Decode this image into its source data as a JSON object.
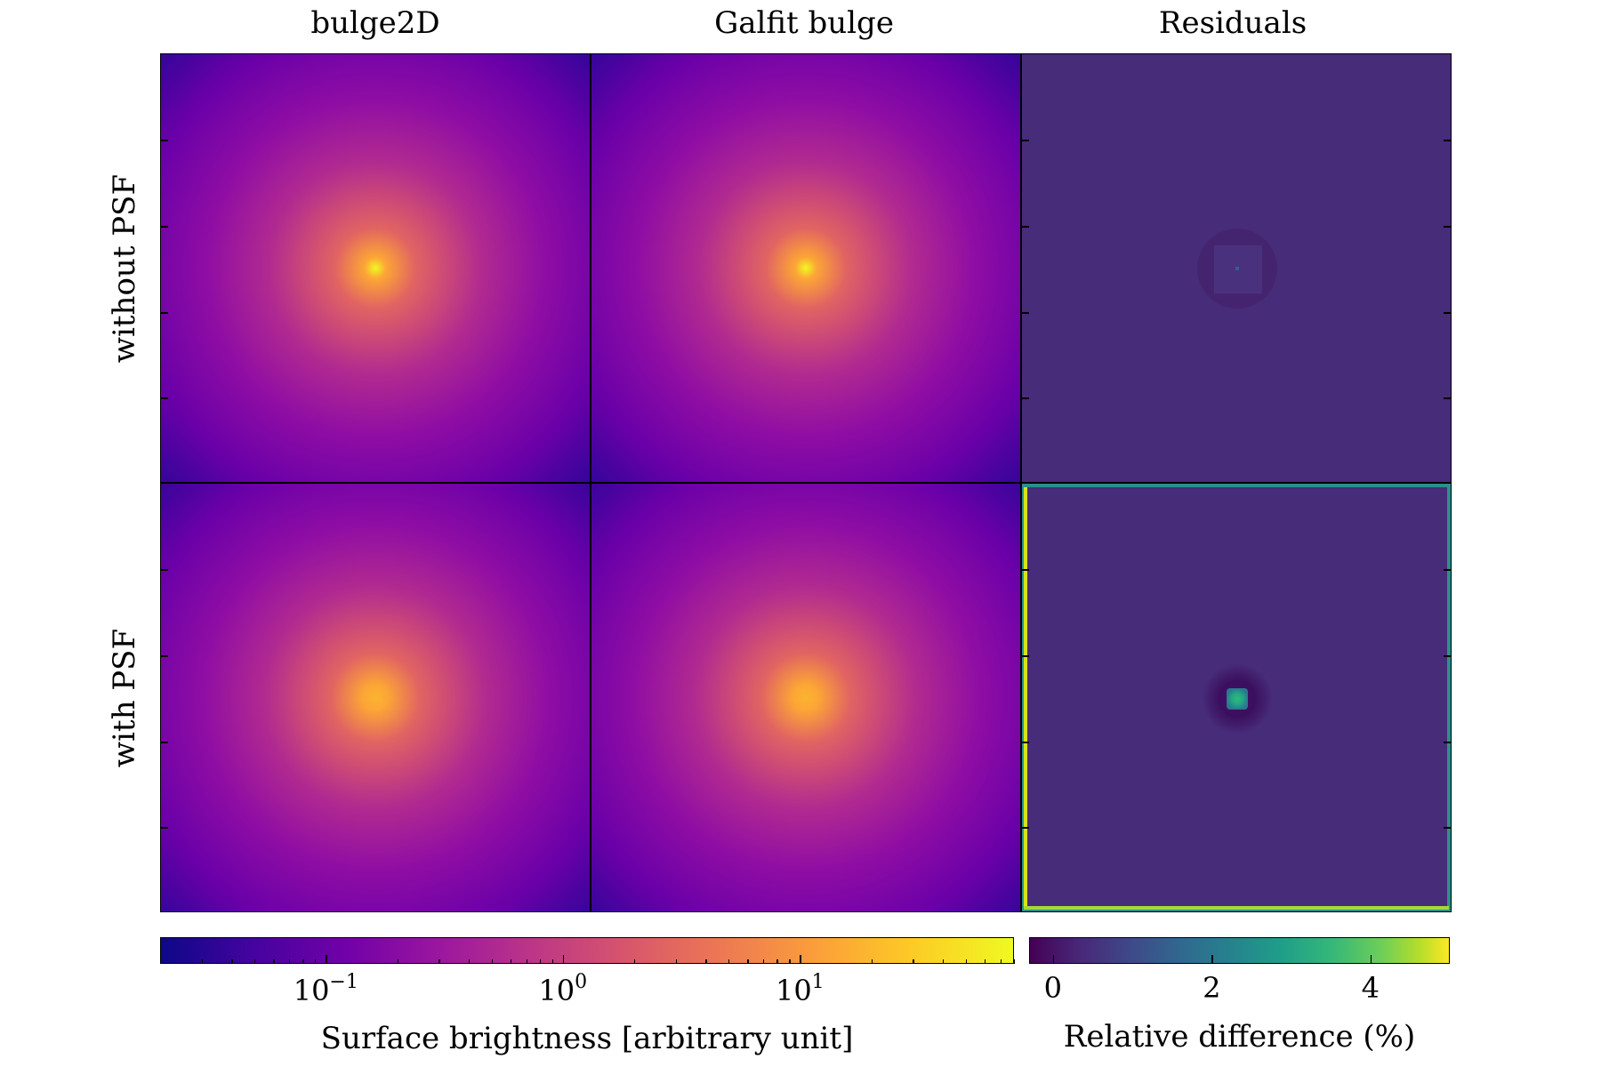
{
  "column_titles": [
    "bulge2D",
    "Galfit bulge",
    "Residuals"
  ],
  "row_labels": [
    "without PSF",
    "with PSF"
  ],
  "colorbar_left": {
    "label": "Surface brightness [arbitrary unit]",
    "scale": "log",
    "colormap": "plasma",
    "range": [
      0.02,
      80
    ],
    "ticks": [
      {
        "value": 0.1,
        "base": "10",
        "exp": "−1"
      },
      {
        "value": 1,
        "base": "10",
        "exp": "0"
      },
      {
        "value": 10,
        "base": "10",
        "exp": "1"
      }
    ]
  },
  "colorbar_right": {
    "label": "Relative difference (%)",
    "scale": "linear",
    "colormap": "viridis",
    "range": [
      -0.3,
      5.0
    ],
    "ticks": [
      {
        "value": 0,
        "text": "0"
      },
      {
        "value": 2,
        "text": "2"
      },
      {
        "value": 4,
        "text": "4"
      }
    ]
  },
  "chart_data": {
    "type": "heatmap",
    "panels": [
      {
        "row": "without PSF",
        "column": "bulge2D",
        "colormap": "plasma",
        "center_value_approx": 80
      },
      {
        "row": "without PSF",
        "column": "Galfit bulge",
        "colormap": "plasma",
        "center_value_approx": 80
      },
      {
        "row": "without PSF",
        "column": "Residuals",
        "colormap": "viridis",
        "background_value_approx": 0.0
      },
      {
        "row": "with PSF",
        "column": "bulge2D",
        "colormap": "plasma",
        "center_value_approx": 30
      },
      {
        "row": "with PSF",
        "column": "Galfit bulge",
        "colormap": "plasma",
        "center_value_approx": 30
      },
      {
        "row": "with PSF",
        "column": "Residuals",
        "colormap": "viridis",
        "background_value_approx": 0.0,
        "center_value_approx": 2.5,
        "edge_value_approx": 4.8
      }
    ]
  }
}
